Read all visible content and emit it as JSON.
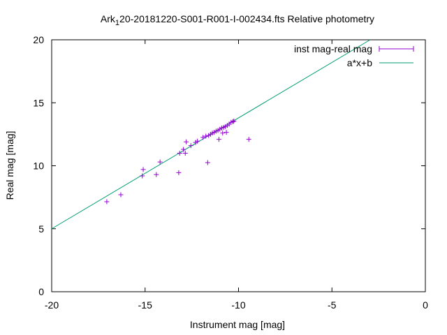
{
  "chart_data": {
    "type": "scatter",
    "title": {
      "prefix": "Ark",
      "subscript": "1",
      "suffix": "20-20181220-S001-R001-I-002434.fts Relative photometry"
    },
    "xlabel": "Instrument mag [mag]",
    "ylabel": "Real mag [mag]",
    "xlim": [
      -20,
      0
    ],
    "ylim": [
      0,
      20
    ],
    "x_ticks": [
      -20,
      -15,
      -10,
      -5,
      0
    ],
    "y_ticks": [
      0,
      5,
      10,
      15,
      20
    ],
    "grid": false,
    "legend_position": "top-right",
    "series": [
      {
        "name": "inst mag-real mag",
        "kind": "points",
        "color": "#9400d3",
        "points": [
          [
            -17.05,
            7.15
          ],
          [
            -16.3,
            7.7
          ],
          [
            -15.15,
            9.2
          ],
          [
            -15.1,
            9.7
          ],
          [
            -14.4,
            9.3
          ],
          [
            -14.2,
            10.3
          ],
          [
            -13.2,
            9.45
          ],
          [
            -13.15,
            11.0
          ],
          [
            -12.95,
            11.3
          ],
          [
            -12.85,
            11.0
          ],
          [
            -12.8,
            11.9
          ],
          [
            -12.55,
            11.6
          ],
          [
            -12.3,
            11.85
          ],
          [
            -12.2,
            11.95
          ],
          [
            -11.9,
            12.25
          ],
          [
            -11.75,
            12.35
          ],
          [
            -11.65,
            10.25
          ],
          [
            -11.6,
            12.4
          ],
          [
            -11.5,
            12.5
          ],
          [
            -11.4,
            12.6
          ],
          [
            -11.3,
            12.65
          ],
          [
            -11.2,
            12.75
          ],
          [
            -11.1,
            12.8
          ],
          [
            -11.05,
            12.1
          ],
          [
            -11.0,
            12.9
          ],
          [
            -10.9,
            13.0
          ],
          [
            -10.85,
            12.6
          ],
          [
            -10.8,
            13.05
          ],
          [
            -10.7,
            13.1
          ],
          [
            -10.65,
            12.65
          ],
          [
            -10.6,
            13.2
          ],
          [
            -10.5,
            13.3
          ],
          [
            -10.4,
            13.45
          ],
          [
            -10.3,
            13.5
          ],
          [
            -10.25,
            13.55
          ],
          [
            -9.45,
            12.1
          ]
        ]
      },
      {
        "name": "a*x+b",
        "kind": "line",
        "color": "#009e73",
        "slope": 0.88,
        "intercept": 22.6
      }
    ]
  }
}
